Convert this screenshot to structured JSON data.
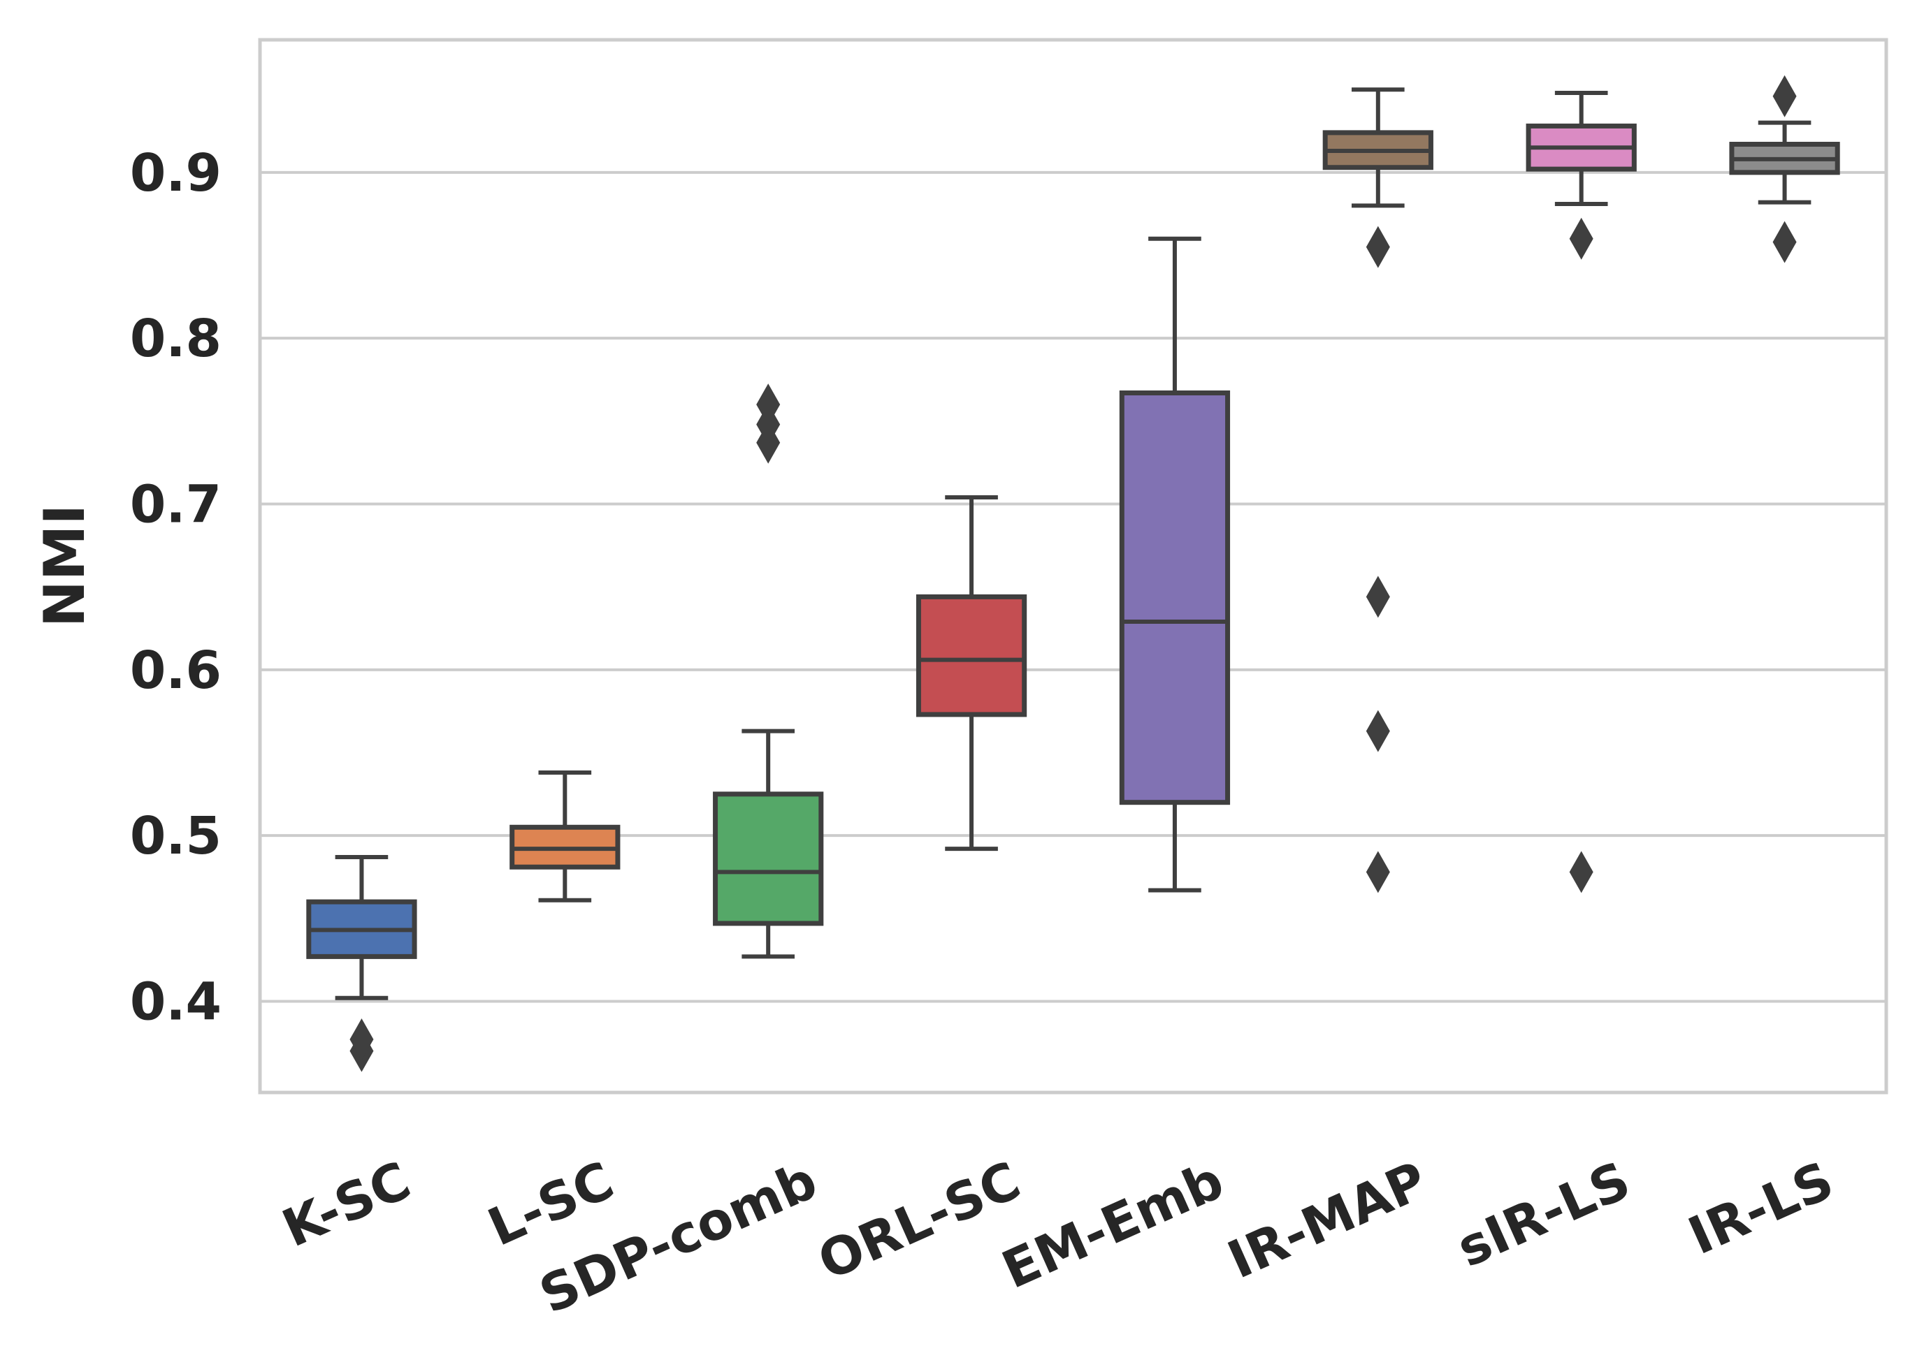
{
  "chart_data": {
    "type": "box",
    "title": "",
    "xlabel": "",
    "ylabel": "NMI",
    "ylim": [
      0.345,
      0.98
    ],
    "yticks": [
      0.4,
      0.5,
      0.6,
      0.7,
      0.8,
      0.9
    ],
    "ytick_labels": [
      "0.4",
      "0.5",
      "0.6",
      "0.7",
      "0.8",
      "0.9"
    ],
    "grid": true,
    "categories": [
      "K-SC",
      "L-SC",
      "SDP-comb",
      "ORL-SC",
      "EM-Emb",
      "IR-MAP",
      "sIR-LS",
      "IR-LS"
    ],
    "colors": [
      "#4c72b0",
      "#dd8452",
      "#55a868",
      "#c44e52",
      "#8172b3",
      "#937860",
      "#da8bc3",
      "#8c8c8c"
    ],
    "boxes": [
      {
        "name": "K-SC",
        "whisker_low": 0.402,
        "q1": 0.427,
        "median": 0.443,
        "q3": 0.46,
        "whisker_high": 0.487,
        "outliers": [
          0.37,
          0.377
        ]
      },
      {
        "name": "L-SC",
        "whisker_low": 0.461,
        "q1": 0.481,
        "median": 0.492,
        "q3": 0.505,
        "whisker_high": 0.538,
        "outliers": []
      },
      {
        "name": "SDP-comb",
        "whisker_low": 0.427,
        "q1": 0.447,
        "median": 0.478,
        "q3": 0.525,
        "whisker_high": 0.563,
        "outliers": [
          0.737,
          0.748,
          0.76
        ]
      },
      {
        "name": "ORL-SC",
        "whisker_low": 0.492,
        "q1": 0.573,
        "median": 0.606,
        "q3": 0.644,
        "whisker_high": 0.704,
        "outliers": []
      },
      {
        "name": "EM-Emb",
        "whisker_low": 0.467,
        "q1": 0.52,
        "median": 0.629,
        "q3": 0.767,
        "whisker_high": 0.86,
        "outliers": []
      },
      {
        "name": "IR-MAP",
        "whisker_low": 0.88,
        "q1": 0.903,
        "median": 0.913,
        "q3": 0.924,
        "whisker_high": 0.95,
        "outliers": [
          0.478,
          0.563,
          0.644,
          0.855
        ]
      },
      {
        "name": "sIR-LS",
        "whisker_low": 0.881,
        "q1": 0.902,
        "median": 0.915,
        "q3": 0.928,
        "whisker_high": 0.948,
        "outliers": [
          0.478,
          0.86
        ]
      },
      {
        "name": "IR-LS",
        "whisker_low": 0.882,
        "q1": 0.9,
        "median": 0.908,
        "q3": 0.917,
        "whisker_high": 0.93,
        "outliers": [
          0.858,
          0.946
        ]
      }
    ]
  }
}
